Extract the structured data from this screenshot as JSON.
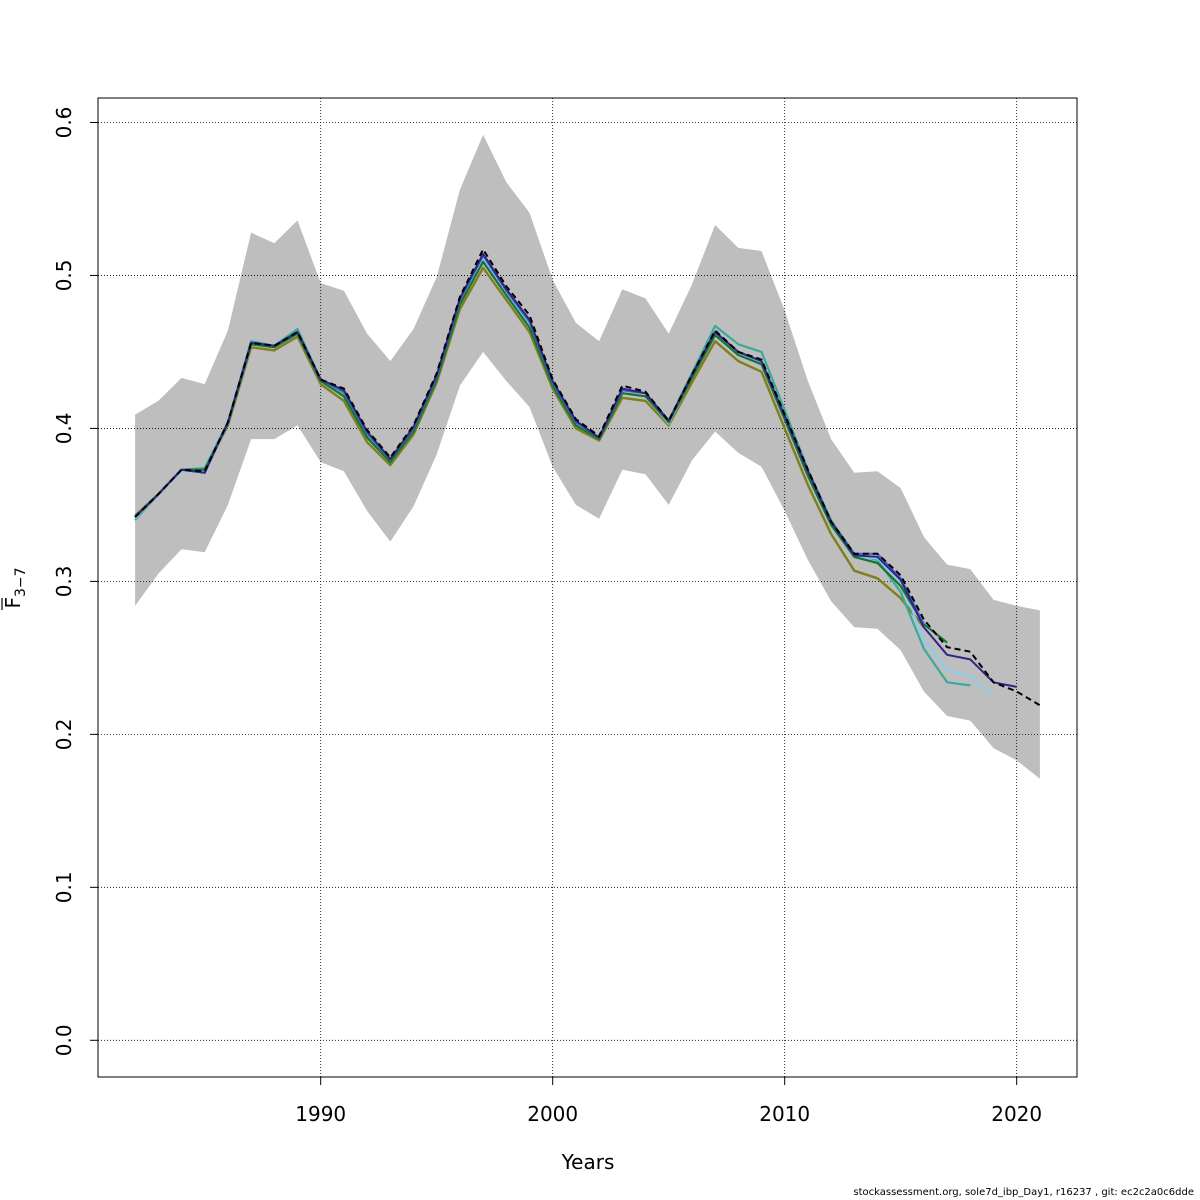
{
  "chart_data": {
    "type": "line",
    "xlabel": "Years",
    "ylabel_main": "F",
    "ylabel_sub": "3−7",
    "xlim": [
      1980.4,
      2022.6
    ],
    "ylim": [
      -0.024,
      0.616
    ],
    "x_ticks": [
      1990,
      2000,
      2010,
      2020
    ],
    "y_ticks": [
      0.0,
      0.1,
      0.2,
      0.3,
      0.4,
      0.5,
      0.6
    ],
    "x_tick_labels": [
      "1990",
      "2000",
      "2010",
      "2020"
    ],
    "y_tick_labels": [
      "0.0",
      "0.1",
      "0.2",
      "0.3",
      "0.4",
      "0.5",
      "0.6"
    ],
    "grid": true,
    "band_color": "#bebebe",
    "confidence_band": {
      "x": [
        1982,
        1983,
        1984,
        1985,
        1986,
        1987,
        1988,
        1989,
        1990,
        1991,
        1992,
        1993,
        1994,
        1995,
        1996,
        1997,
        1998,
        1999,
        2000,
        2001,
        2002,
        2003,
        2004,
        2005,
        2006,
        2007,
        2008,
        2009,
        2010,
        2011,
        2012,
        2013,
        2014,
        2015,
        2016,
        2017,
        2018,
        2019,
        2020,
        2021
      ],
      "upper": [
        0.409,
        0.418,
        0.433,
        0.429,
        0.464,
        0.528,
        0.521,
        0.536,
        0.495,
        0.49,
        0.462,
        0.444,
        0.465,
        0.499,
        0.556,
        0.592,
        0.561,
        0.541,
        0.497,
        0.469,
        0.457,
        0.491,
        0.485,
        0.462,
        0.494,
        0.533,
        0.518,
        0.516,
        0.477,
        0.431,
        0.393,
        0.371,
        0.372,
        0.361,
        0.329,
        0.311,
        0.308,
        0.288,
        0.284,
        0.281
      ],
      "lower": [
        0.284,
        0.305,
        0.321,
        0.319,
        0.35,
        0.393,
        0.393,
        0.402,
        0.378,
        0.372,
        0.346,
        0.326,
        0.349,
        0.383,
        0.428,
        0.45,
        0.431,
        0.414,
        0.375,
        0.35,
        0.341,
        0.373,
        0.37,
        0.35,
        0.379,
        0.398,
        0.384,
        0.375,
        0.346,
        0.314,
        0.287,
        0.27,
        0.269,
        0.255,
        0.228,
        0.212,
        0.209,
        0.191,
        0.183,
        0.171
      ]
    },
    "series": [
      {
        "color": "#7f7f1f",
        "width": 2.4,
        "dash": "",
        "x": [
          1982,
          1983,
          1984,
          1985,
          1986,
          1987,
          1988,
          1989,
          1990,
          1991,
          1992,
          1993,
          1994,
          1995,
          1996,
          1997,
          1998,
          1999,
          2000,
          2001,
          2002,
          2003,
          2004,
          2005,
          2006,
          2007,
          2008,
          2009,
          2010,
          2011,
          2012,
          2013,
          2014,
          2015,
          2016
        ],
        "y": [
          0.343,
          0.357,
          0.373,
          0.373,
          0.402,
          0.453,
          0.451,
          0.46,
          0.429,
          0.418,
          0.391,
          0.376,
          0.396,
          0.43,
          0.478,
          0.505,
          0.484,
          0.463,
          0.426,
          0.4,
          0.392,
          0.42,
          0.418,
          0.402,
          0.43,
          0.457,
          0.444,
          0.437,
          0.4,
          0.363,
          0.331,
          0.307,
          0.302,
          0.289,
          0.27
        ]
      },
      {
        "color": "#3aaa99",
        "width": 2.2,
        "dash": "",
        "x": [
          1982,
          1983,
          1984,
          1985,
          1986,
          1987,
          1988,
          1989,
          1990,
          1991,
          1992,
          1993,
          1994,
          1995,
          1996,
          1997,
          1998,
          1999,
          2000,
          2001,
          2002,
          2003,
          2004,
          2005,
          2006,
          2007,
          2008,
          2009,
          2010,
          2011,
          2012,
          2013,
          2014,
          2015,
          2016,
          2017,
          2018
        ],
        "y": [
          0.34,
          0.357,
          0.373,
          0.374,
          0.404,
          0.457,
          0.454,
          0.465,
          0.432,
          0.423,
          0.396,
          0.379,
          0.4,
          0.434,
          0.484,
          0.514,
          0.49,
          0.469,
          0.43,
          0.404,
          0.394,
          0.425,
          0.423,
          0.405,
          0.436,
          0.467,
          0.455,
          0.45,
          0.412,
          0.373,
          0.34,
          0.318,
          0.314,
          0.293,
          0.256,
          0.234,
          0.232
        ]
      },
      {
        "color": "#88ccee",
        "width": 2.0,
        "dash": "",
        "x": [
          1982,
          1983,
          1984,
          1985,
          1986,
          1987,
          1988,
          1989,
          1990,
          1991,
          1992,
          1993,
          1994,
          1995,
          1996,
          1997,
          1998,
          1999,
          2000,
          2001,
          2002,
          2003,
          2004,
          2005,
          2006,
          2007,
          2008,
          2009,
          2010,
          2011,
          2012,
          2013,
          2014,
          2015,
          2016,
          2017,
          2018,
          2019
        ],
        "y": [
          0.341,
          0.357,
          0.372,
          0.372,
          0.403,
          0.455,
          0.453,
          0.462,
          0.431,
          0.421,
          0.394,
          0.378,
          0.398,
          0.432,
          0.481,
          0.511,
          0.488,
          0.467,
          0.428,
          0.402,
          0.393,
          0.423,
          0.421,
          0.403,
          0.433,
          0.462,
          0.449,
          0.443,
          0.406,
          0.369,
          0.337,
          0.316,
          0.315,
          0.3,
          0.262,
          0.242,
          0.238,
          0.225
        ]
      },
      {
        "color": "#117733",
        "width": 2.2,
        "dash": "",
        "x": [
          1982,
          1983,
          1984,
          1985,
          1986,
          1987,
          1988,
          1989,
          1990,
          1991,
          1992,
          1993,
          1994,
          1995,
          1996,
          1997,
          1998,
          1999,
          2000,
          2001,
          2002,
          2003,
          2004,
          2005,
          2006,
          2007,
          2008,
          2009,
          2010,
          2011,
          2012,
          2013,
          2014,
          2015,
          2016,
          2017
        ],
        "y": [
          0.342,
          0.357,
          0.373,
          0.373,
          0.403,
          0.455,
          0.453,
          0.462,
          0.431,
          0.421,
          0.394,
          0.378,
          0.398,
          0.432,
          0.481,
          0.509,
          0.487,
          0.466,
          0.428,
          0.402,
          0.393,
          0.423,
          0.421,
          0.404,
          0.433,
          0.461,
          0.448,
          0.442,
          0.406,
          0.369,
          0.337,
          0.316,
          0.312,
          0.297,
          0.272,
          0.26
        ]
      },
      {
        "color": "#4466cc",
        "width": 2.0,
        "dash": "",
        "x": [
          1982,
          1983,
          1984,
          1985,
          1986,
          1987,
          1988,
          1989,
          1990,
          1991,
          1992,
          1993,
          1994,
          1995,
          1996,
          1997,
          1998,
          1999,
          2000,
          2001,
          2002,
          2003,
          2004,
          2005,
          2006,
          2007,
          2008,
          2009,
          2010,
          2011,
          2012,
          2013,
          2014,
          2015,
          2016
        ],
        "y": [
          0.342,
          0.357,
          0.373,
          0.371,
          0.404,
          0.456,
          0.454,
          0.463,
          0.432,
          0.424,
          0.397,
          0.38,
          0.4,
          0.434,
          0.484,
          0.513,
          0.49,
          0.47,
          0.43,
          0.404,
          0.394,
          0.425,
          0.423,
          0.405,
          0.435,
          0.463,
          0.45,
          0.444,
          0.408,
          0.372,
          0.339,
          0.318,
          0.318,
          0.302,
          0.272
        ]
      },
      {
        "color": "#332288",
        "width": 2.0,
        "dash": "",
        "x": [
          1982,
          1983,
          1984,
          1985,
          1986,
          1987,
          1988,
          1989,
          1990,
          1991,
          1992,
          1993,
          1994,
          1995,
          1996,
          1997,
          1998,
          1999,
          2000,
          2001,
          2002,
          2003,
          2004,
          2005,
          2006,
          2007,
          2008,
          2009,
          2010,
          2011,
          2012,
          2013,
          2014,
          2015,
          2016,
          2017,
          2018,
          2019,
          2020
        ],
        "y": [
          0.342,
          0.357,
          0.373,
          0.371,
          0.404,
          0.456,
          0.454,
          0.463,
          0.432,
          0.425,
          0.398,
          0.38,
          0.401,
          0.435,
          0.485,
          0.514,
          0.491,
          0.471,
          0.431,
          0.405,
          0.394,
          0.426,
          0.423,
          0.405,
          0.435,
          0.463,
          0.45,
          0.444,
          0.408,
          0.372,
          0.339,
          0.317,
          0.316,
          0.301,
          0.27,
          0.252,
          0.249,
          0.234,
          0.231
        ]
      },
      {
        "color": "#000000",
        "width": 2.0,
        "dash": "6,4",
        "x": [
          1982,
          1983,
          1984,
          1985,
          1986,
          1987,
          1988,
          1989,
          1990,
          1991,
          1992,
          1993,
          1994,
          1995,
          1996,
          1997,
          1998,
          1999,
          2000,
          2001,
          2002,
          2003,
          2004,
          2005,
          2006,
          2007,
          2008,
          2009,
          2010,
          2011,
          2012,
          2013,
          2014,
          2015,
          2016,
          2017,
          2018,
          2019,
          2020,
          2021
        ],
        "y": [
          0.342,
          0.357,
          0.373,
          0.372,
          0.404,
          0.456,
          0.454,
          0.463,
          0.432,
          0.426,
          0.399,
          0.381,
          0.402,
          0.436,
          0.486,
          0.517,
          0.493,
          0.474,
          0.432,
          0.406,
          0.395,
          0.428,
          0.424,
          0.405,
          0.435,
          0.464,
          0.45,
          0.445,
          0.409,
          0.373,
          0.339,
          0.318,
          0.318,
          0.304,
          0.275,
          0.257,
          0.254,
          0.234,
          0.228,
          0.219
        ]
      }
    ]
  },
  "footer": "stockassessment.org, sole7d_ibp_Day1, r16237 , git: ec2c2a0c6dde"
}
